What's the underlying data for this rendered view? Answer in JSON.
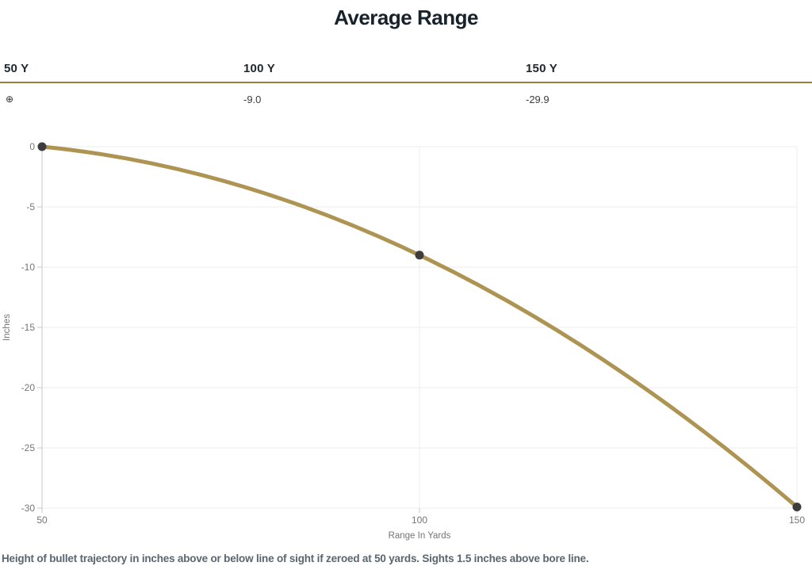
{
  "title": "Average Range",
  "table": {
    "headers": [
      "50 Y",
      "100 Y",
      "150 Y"
    ],
    "values": [
      "⊕",
      "-9.0",
      "-29.9"
    ]
  },
  "footnote": "Height of bullet trajectory in inches above or below line of sight if zeroed at 50 yards. Sights 1.5 inches above bore line.",
  "colors": {
    "title-text": "#18222b",
    "heading-text": "#1d262e",
    "value-text": "#3c3c3c",
    "footnote-text": "#5a656e",
    "accent-gold": "#9c7d3e",
    "line-gold": "#ae9452",
    "point": "#3d3d3d",
    "grid": "#ececec",
    "axis": "#c9c9c9",
    "tick-text": "#757575"
  },
  "chart_data": {
    "type": "line",
    "x": [
      50,
      100,
      150
    ],
    "series": [
      {
        "name": "Average Range",
        "values": [
          0,
          -9.0,
          -29.9
        ]
      }
    ],
    "title": "Average Range",
    "xlabel": "Range In Yards",
    "ylabel": "Inches",
    "xlim": [
      50,
      150
    ],
    "ylim": [
      -30,
      0
    ],
    "xticks": [
      50,
      100,
      150
    ],
    "yticks": [
      0,
      -5,
      -10,
      -15,
      -20,
      -25,
      -30
    ],
    "grid": true,
    "legend": false,
    "curve": "smooth",
    "line_color": "#ae9452",
    "point_color": "#3d3d3d",
    "annotations": [
      "zero at 50 yards",
      "-9.0 at 100 yards",
      "-29.9 at 150 yards"
    ]
  }
}
